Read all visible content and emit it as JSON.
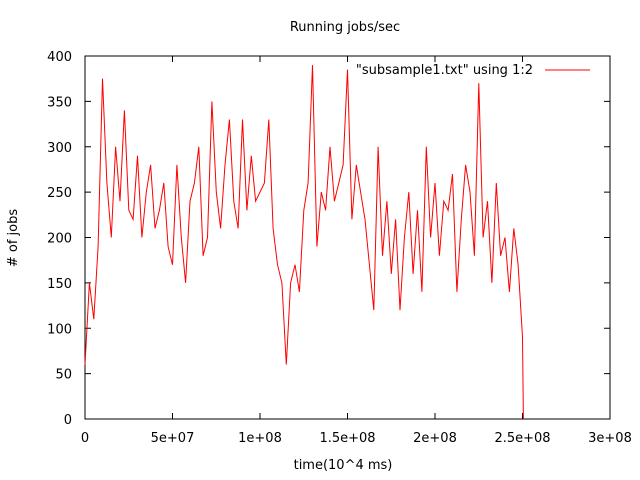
{
  "chart_data": {
    "type": "line",
    "title": "Running jobs/sec",
    "xlabel": "time(10^4 ms)",
    "ylabel": "# of jobs",
    "xlim": [
      0,
      300000000
    ],
    "ylim": [
      0,
      400
    ],
    "x_ticks": [
      {
        "value": 0,
        "label": "0"
      },
      {
        "value": 50000000,
        "label": "5e+07"
      },
      {
        "value": 100000000,
        "label": "1e+08"
      },
      {
        "value": 150000000,
        "label": "1.5e+08"
      },
      {
        "value": 200000000,
        "label": "2e+08"
      },
      {
        "value": 250000000,
        "label": "2.5e+08"
      },
      {
        "value": 300000000,
        "label": "3e+08"
      }
    ],
    "y_ticks": [
      {
        "value": 0,
        "label": "0"
      },
      {
        "value": 50,
        "label": "50"
      },
      {
        "value": 100,
        "label": "100"
      },
      {
        "value": 150,
        "label": "150"
      },
      {
        "value": 200,
        "label": "200"
      },
      {
        "value": 250,
        "label": "250"
      },
      {
        "value": 300,
        "label": "300"
      },
      {
        "value": 350,
        "label": "350"
      },
      {
        "value": 400,
        "label": "400"
      }
    ],
    "grid": false,
    "legend_position": "top-right",
    "series": [
      {
        "name": "\"subsample1.txt\" using 1:2",
        "color": "#ff0000",
        "x": [
          0,
          2500000,
          5000000,
          7500000,
          10000000,
          12500000,
          15000000,
          17500000,
          20000000,
          22500000,
          25000000,
          27500000,
          30000000,
          32500000,
          35000000,
          37500000,
          40000000,
          42500000,
          45000000,
          47500000,
          50000000,
          52500000,
          55000000,
          57500000,
          60000000,
          62500000,
          65000000,
          67500000,
          70000000,
          72500000,
          75000000,
          77500000,
          80000000,
          82500000,
          85000000,
          87500000,
          90000000,
          92500000,
          95000000,
          97500000,
          100000000,
          102500000,
          105000000,
          107500000,
          110000000,
          112500000,
          115000000,
          117500000,
          120000000,
          122500000,
          125000000,
          127500000,
          130000000,
          132500000,
          135000000,
          137500000,
          140000000,
          142500000,
          145000000,
          147500000,
          150000000,
          152500000,
          155000000,
          157500000,
          160000000,
          162500000,
          165000000,
          167500000,
          170000000,
          172500000,
          175000000,
          177500000,
          180000000,
          182500000,
          185000000,
          187500000,
          190000000,
          192500000,
          195000000,
          197500000,
          200000000,
          202500000,
          205000000,
          207500000,
          210000000,
          212500000,
          215000000,
          217500000,
          220000000,
          222500000,
          225000000,
          227500000,
          230000000,
          232500000,
          235000000,
          237500000,
          240000000,
          242500000,
          245000000,
          247500000,
          250000000,
          250500000
        ],
        "y": [
          60,
          150,
          110,
          190,
          375,
          260,
          200,
          300,
          240,
          340,
          230,
          220,
          290,
          200,
          250,
          280,
          210,
          230,
          260,
          190,
          170,
          280,
          200,
          150,
          240,
          260,
          300,
          180,
          200,
          350,
          250,
          210,
          280,
          330,
          240,
          210,
          330,
          230,
          290,
          240,
          250,
          260,
          330,
          210,
          170,
          150,
          60,
          150,
          170,
          140,
          230,
          260,
          390,
          190,
          250,
          230,
          300,
          240,
          260,
          280,
          385,
          220,
          280,
          250,
          220,
          170,
          120,
          300,
          180,
          240,
          160,
          220,
          120,
          200,
          250,
          160,
          230,
          140,
          300,
          200,
          260,
          180,
          240,
          230,
          270,
          140,
          220,
          280,
          250,
          180,
          370,
          200,
          240,
          150,
          260,
          180,
          200,
          140,
          210,
          170,
          90,
          0
        ]
      }
    ]
  }
}
